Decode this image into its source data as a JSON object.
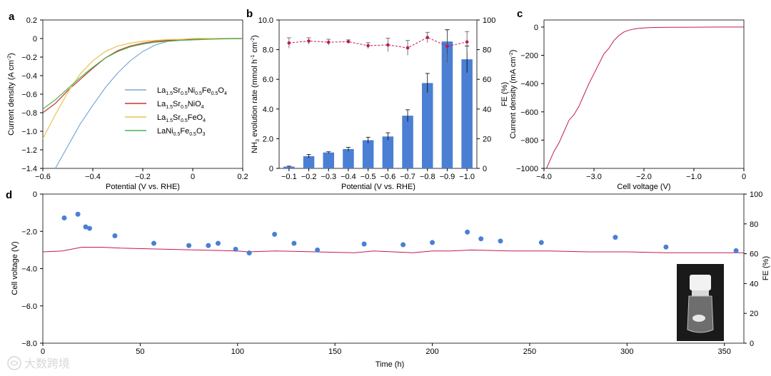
{
  "chart_data": [
    {
      "panel": "a",
      "type": "line",
      "xlabel": "Potential (V vs. RHE)",
      "ylabel": "Current density (A cm⁻²)",
      "xlim": [
        -0.6,
        0.2
      ],
      "ylim": [
        -1.4,
        0.2
      ],
      "xticks": [
        "-0.6",
        "-0.4",
        "-0.2",
        "0",
        "0.2"
      ],
      "yticks": [
        "0.2",
        "0",
        "-0.2",
        "-0.4",
        "-0.6",
        "-0.8",
        "-1.0",
        "-1.2",
        "-1.4"
      ],
      "legend_position": "center-right",
      "series": [
        {
          "name": "La1.5Sr0.5Ni0.5Fe0.5O4",
          "color": "#7ba7d8",
          "x": [
            -0.55,
            -0.5,
            -0.45,
            -0.4,
            -0.35,
            -0.3,
            -0.25,
            -0.2,
            -0.15,
            -0.1,
            -0.05,
            0.0,
            0.05,
            0.1,
            0.2
          ],
          "y": [
            -1.4,
            -1.16,
            -0.92,
            -0.72,
            -0.53,
            -0.37,
            -0.24,
            -0.14,
            -0.07,
            -0.03,
            -0.01,
            0.0,
            0.0,
            0.0,
            0.0
          ]
        },
        {
          "name": "La1.5Sr0.5NiO4",
          "color": "#c0392b",
          "x": [
            -0.6,
            -0.55,
            -0.5,
            -0.45,
            -0.4,
            -0.35,
            -0.3,
            -0.25,
            -0.2,
            -0.15,
            -0.1,
            -0.05,
            0.0,
            0.05,
            0.1,
            0.2
          ],
          "y": [
            -0.8,
            -0.7,
            -0.56,
            -0.44,
            -0.32,
            -0.21,
            -0.13,
            -0.08,
            -0.05,
            -0.03,
            -0.02,
            -0.01,
            -0.01,
            -0.005,
            0.0,
            0.0
          ]
        },
        {
          "name": "La1.5Sr0.5FeO4",
          "color": "#e8c44e",
          "x": [
            -0.6,
            -0.55,
            -0.5,
            -0.45,
            -0.4,
            -0.35,
            -0.3,
            -0.25,
            -0.2,
            -0.15,
            -0.1,
            -0.05,
            0.0,
            0.05,
            0.1,
            0.2
          ],
          "y": [
            -1.08,
            -0.82,
            -0.58,
            -0.38,
            -0.24,
            -0.14,
            -0.08,
            -0.05,
            -0.03,
            -0.02,
            -0.01,
            -0.01,
            0.0,
            0.0,
            0.0,
            0.0
          ]
        },
        {
          "name": "LaNi0.5Fe0.5O3",
          "color": "#4caf50",
          "x": [
            -0.6,
            -0.55,
            -0.5,
            -0.45,
            -0.4,
            -0.35,
            -0.3,
            -0.25,
            -0.2,
            -0.15,
            -0.1,
            -0.05,
            0.0,
            0.05,
            0.1,
            0.2
          ],
          "y": [
            -0.76,
            -0.66,
            -0.54,
            -0.42,
            -0.31,
            -0.21,
            -0.14,
            -0.09,
            -0.06,
            -0.04,
            -0.03,
            -0.02,
            -0.015,
            -0.01,
            -0.005,
            0.0
          ]
        }
      ]
    },
    {
      "panel": "b",
      "type": "bar",
      "xlabel": "Potential (V vs. RHE)",
      "ylabel": "NH₃ evolution rate (mmol h⁻¹ cm⁻²)",
      "y2label": "FE (%)",
      "categories": [
        "-0.1",
        "-0.2",
        "-0.3",
        "-0.4",
        "-0.5",
        "-0.6",
        "-0.7",
        "-0.8",
        "-0.9",
        "-1.0"
      ],
      "ylim": [
        0,
        10
      ],
      "yticks": [
        "0",
        "2.0",
        "4.0",
        "6.0",
        "8.0",
        "10.0"
      ],
      "y2lim": [
        0,
        100
      ],
      "y2ticks": [
        "0",
        "20",
        "40",
        "60",
        "80",
        "100"
      ],
      "series": [
        {
          "name": "NH3 evolution rate",
          "kind": "bar",
          "color": "#4a7fd4",
          "values": [
            0.12,
            0.82,
            1.07,
            1.3,
            1.9,
            2.15,
            3.55,
            5.75,
            8.55,
            7.35
          ],
          "errors": [
            0.03,
            0.12,
            0.05,
            0.12,
            0.2,
            0.25,
            0.4,
            0.65,
            0.8,
            0.9
          ]
        },
        {
          "name": "FE",
          "kind": "line",
          "axis": "right",
          "color": "#c2185b",
          "values": [
            84.5,
            85.8,
            85.0,
            85.4,
            82.7,
            83.2,
            81.2,
            88.2,
            82.3,
            85.2
          ],
          "errors": [
            3.5,
            2.2,
            2.0,
            1.2,
            2.0,
            4.5,
            5.0,
            3.5,
            11.0,
            7.0
          ]
        }
      ]
    },
    {
      "panel": "c",
      "type": "line",
      "xlabel": "Cell voltage (V)",
      "ylabel": "Current density (mA cm⁻²)",
      "xlim": [
        -4.0,
        0
      ],
      "ylim": [
        -1000,
        50
      ],
      "xticks": [
        "-4.0",
        "-3.0",
        "-2.0",
        "-1.0",
        "0"
      ],
      "yticks": [
        "0",
        "-200",
        "-400",
        "-600",
        "-800",
        "-1000"
      ],
      "series": [
        {
          "name": "polarization",
          "color": "#c2185b",
          "x": [
            -3.95,
            -3.9,
            -3.8,
            -3.7,
            -3.6,
            -3.5,
            -3.4,
            -3.3,
            -3.2,
            -3.1,
            -3.0,
            -2.9,
            -2.8,
            -2.7,
            -2.6,
            -2.5,
            -2.4,
            -2.3,
            -2.2,
            -2.1,
            -2.0,
            -1.9,
            -1.8,
            -1.5,
            -1.0,
            -0.5,
            0.0
          ],
          "y": [
            -1000,
            -960,
            -880,
            -820,
            -740,
            -660,
            -620,
            -560,
            -480,
            -400,
            -330,
            -260,
            -190,
            -150,
            -95,
            -60,
            -35,
            -22,
            -14,
            -9,
            -6,
            -4,
            -3,
            -2,
            -1,
            0,
            0
          ]
        }
      ]
    },
    {
      "panel": "d",
      "type": "scatter",
      "xlabel": "Time (h)",
      "ylabel": "Cell voltage (V)",
      "y2label": "FE (%)",
      "xlim": [
        0,
        360
      ],
      "xticks": [
        "0",
        "50",
        "100",
        "150",
        "200",
        "250",
        "300",
        "350"
      ],
      "ylim": [
        -8.0,
        0
      ],
      "yticks": [
        "0",
        "-2.0",
        "-4.0",
        "-6.0",
        "-8.0"
      ],
      "y2lim": [
        0,
        100
      ],
      "y2ticks": [
        "0",
        "20",
        "40",
        "60",
        "80",
        "100"
      ],
      "series": [
        {
          "name": "Cell voltage",
          "kind": "line",
          "color": "#c2185b",
          "x": [
            0,
            10,
            20,
            30,
            40,
            60,
            80,
            100,
            105,
            120,
            140,
            160,
            170,
            180,
            190,
            200,
            210,
            220,
            240,
            260,
            280,
            300,
            320,
            340,
            360
          ],
          "y": [
            -3.1,
            -3.05,
            -2.85,
            -2.85,
            -2.9,
            -2.95,
            -3.0,
            -3.05,
            -3.1,
            -3.05,
            -3.1,
            -3.15,
            -3.05,
            -3.1,
            -3.15,
            -3.05,
            -3.05,
            -3.0,
            -3.05,
            -3.05,
            -3.1,
            -3.1,
            -3.15,
            -3.15,
            -3.15
          ]
        },
        {
          "name": "FE",
          "kind": "scatter",
          "axis": "right",
          "color": "#4a7fd4",
          "x": [
            11,
            18,
            22,
            24,
            37,
            57,
            75,
            85,
            90,
            99,
            106,
            119,
            129,
            141,
            165,
            185,
            200,
            218,
            225,
            235,
            256,
            294,
            320,
            356
          ],
          "y": [
            84.0,
            86.5,
            78.0,
            77.0,
            72.0,
            67.0,
            65.5,
            65.5,
            67.0,
            63.0,
            60.5,
            73.0,
            67.0,
            62.5,
            66.5,
            66.0,
            67.5,
            74.5,
            70.0,
            68.5,
            67.5,
            71.0,
            64.5,
            62.0
          ]
        }
      ]
    }
  ],
  "panel_labels": {
    "a": "a",
    "b": "b",
    "c": "c",
    "d": "d"
  },
  "legend_a": {
    "items": [
      {
        "base": "La",
        "s1": "1.5",
        "b2": "Sr",
        "s2": "0.5",
        "b3": "Ni",
        "s3": "0.5",
        "b4": "Fe",
        "s4": "0.5",
        "b5": "O",
        "s5": "4"
      },
      {
        "base": "La",
        "s1": "1.5",
        "b2": "Sr",
        "s2": "0.5",
        "b3": "NiO",
        "s3": "4"
      },
      {
        "base": "La",
        "s1": "1.5",
        "b2": "Sr",
        "s2": "0.5",
        "b3": "FeO",
        "s3": "4"
      },
      {
        "base": "LaNi",
        "s1": "0.5",
        "b2": "Fe",
        "s2": "0.5",
        "b3": "O",
        "s3": "3"
      }
    ]
  },
  "axis_text": {
    "a_ylabel_main": "Current density (A cm",
    "a_ylabel_sup": "-2",
    "a_ylabel_end": ")",
    "b_ylabel_pre": "NH",
    "b_ylabel_sub": "3",
    "b_ylabel_mid": " evolution rate (mmol h",
    "b_ylabel_sup1": "-1",
    "b_ylabel_mid2": " cm",
    "b_ylabel_sup2": "-2",
    "b_ylabel_end": ")",
    "c_ylabel_main": "Current density (mA cm",
    "c_ylabel_sup": "-2",
    "c_ylabel_end": ")"
  },
  "watermark": "大数跨境",
  "inset_image": "sample-vial-photo"
}
